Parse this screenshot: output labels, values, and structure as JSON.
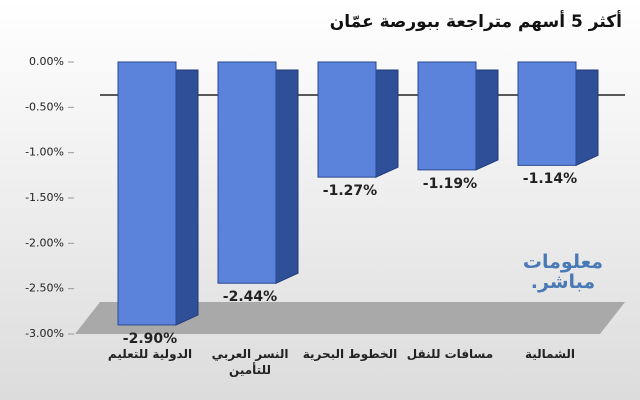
{
  "chart_data": {
    "type": "bar",
    "title": "أكثر 5 أسهم متراجعة ببورصة عمّان",
    "categories": [
      "الدولية للتعليم",
      "النسر العربي للتأمين",
      "الخطوط البحرية",
      "مسافات للنقل",
      "الشمالية"
    ],
    "values": [
      -2.9,
      -2.44,
      -1.27,
      -1.19,
      -1.14
    ],
    "value_labels": [
      "-2.90%",
      "-2.44%",
      "-1.27%",
      "-1.19%",
      "-1.14%"
    ],
    "color": "#5b83dc",
    "ylim": [
      -3,
      0
    ],
    "yticks": [
      {
        "value": 0,
        "label": "0.00%"
      },
      {
        "value": -0.5,
        "label": "-0.50%"
      },
      {
        "value": -1,
        "label": "-1.00%"
      },
      {
        "value": -1.5,
        "label": "-1.50%"
      },
      {
        "value": -2,
        "label": "-2.00%"
      },
      {
        "value": -2.5,
        "label": "-2.50%"
      },
      {
        "value": -3,
        "label": "-3.00%"
      }
    ],
    "watermark": "معلومات مباشر."
  }
}
